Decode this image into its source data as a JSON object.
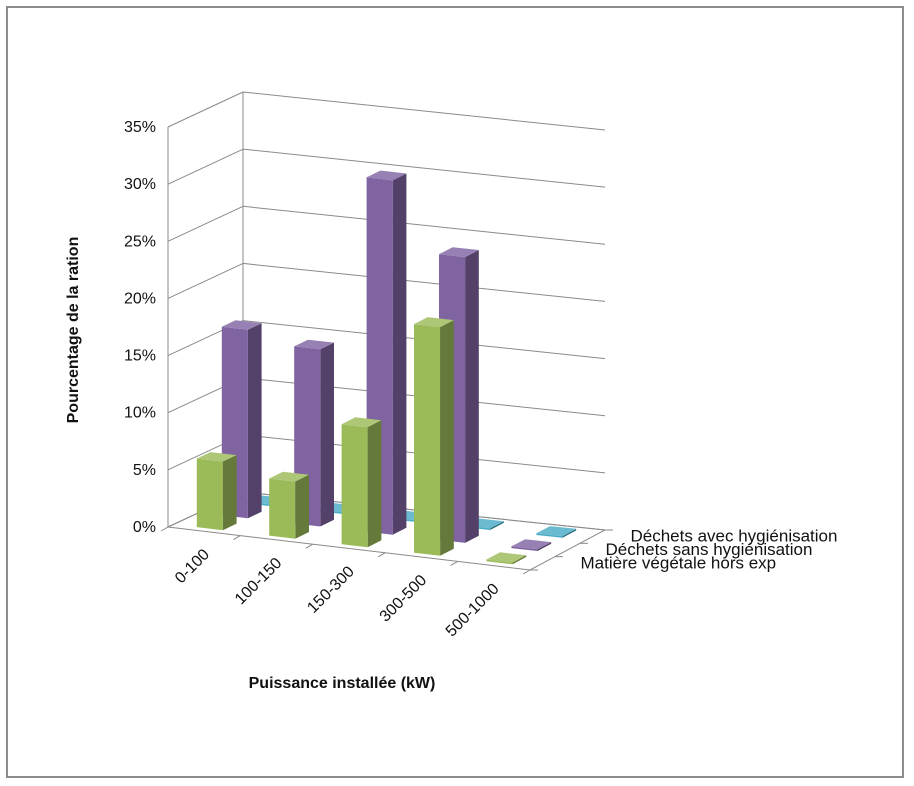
{
  "chart_data": {
    "type": "bar",
    "categories": [
      "0-100",
      "100-150",
      "150-300",
      "300-500",
      "500-1000"
    ],
    "series": [
      {
        "name": "Déchets avec hygiénisation",
        "values": [
          0.0,
          0.0,
          0.0,
          0.0,
          0.0
        ],
        "color": "#4bacc6"
      },
      {
        "name": "Déchets sans hygiénisation",
        "values": [
          0.165,
          0.155,
          0.31,
          0.25,
          0.0
        ],
        "color": "#8064a2"
      },
      {
        "name": "Matière végétale hors exp",
        "values": [
          0.06,
          0.05,
          0.105,
          0.2,
          0.0
        ],
        "color": "#9bbb59"
      }
    ],
    "yticks": [
      "0%",
      "5%",
      "10%",
      "15%",
      "20%",
      "25%",
      "30%",
      "35%"
    ],
    "ylim": [
      0,
      0.35
    ],
    "ylabel": "Pourcentage de la ration",
    "xlabel": "Puissance installée (kW)",
    "gridlines": true,
    "legend_position": "right-depth-axis"
  }
}
